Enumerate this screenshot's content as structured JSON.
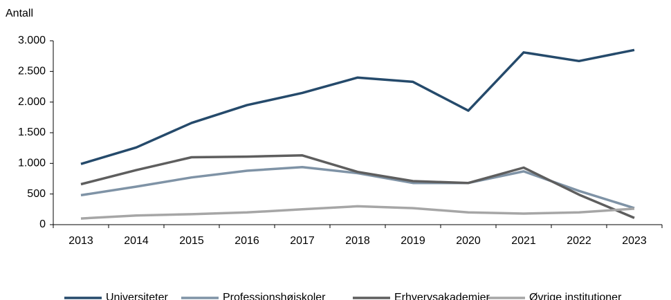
{
  "chart_data": {
    "type": "line",
    "ylabel": "Antall",
    "categories": [
      "2013",
      "2014",
      "2015",
      "2016",
      "2017",
      "2018",
      "2019",
      "2020",
      "2021",
      "2022",
      "2023"
    ],
    "series": [
      {
        "name": "Universiteter",
        "color": "#254a6b",
        "values": [
          990,
          1260,
          1660,
          1950,
          2150,
          2400,
          2330,
          1860,
          2810,
          2670,
          2850
        ]
      },
      {
        "name": "Professionshøjskoler",
        "color": "#7f93a6",
        "values": [
          480,
          620,
          770,
          880,
          940,
          840,
          680,
          680,
          870,
          550,
          270
        ]
      },
      {
        "name": "Erhvervsakademier",
        "color": "#5e5e5e",
        "values": [
          660,
          890,
          1100,
          1110,
          1130,
          860,
          710,
          680,
          930,
          490,
          110
        ]
      },
      {
        "name": "Øvrige institutioner",
        "color": "#a6a6a6",
        "values": [
          100,
          150,
          170,
          200,
          250,
          300,
          270,
          200,
          180,
          200,
          260
        ]
      }
    ],
    "ylim": [
      0,
      3000
    ],
    "yticks": [
      0,
      500,
      {
        "value": 1000,
        "label": "1.000"
      },
      {
        "value": 1500,
        "label": "1.500"
      },
      {
        "value": 2000,
        "label": "2.000"
      },
      {
        "value": 2500,
        "label": "2.500"
      },
      {
        "value": 3000,
        "label": "3.000"
      }
    ],
    "legend": "bottom"
  }
}
